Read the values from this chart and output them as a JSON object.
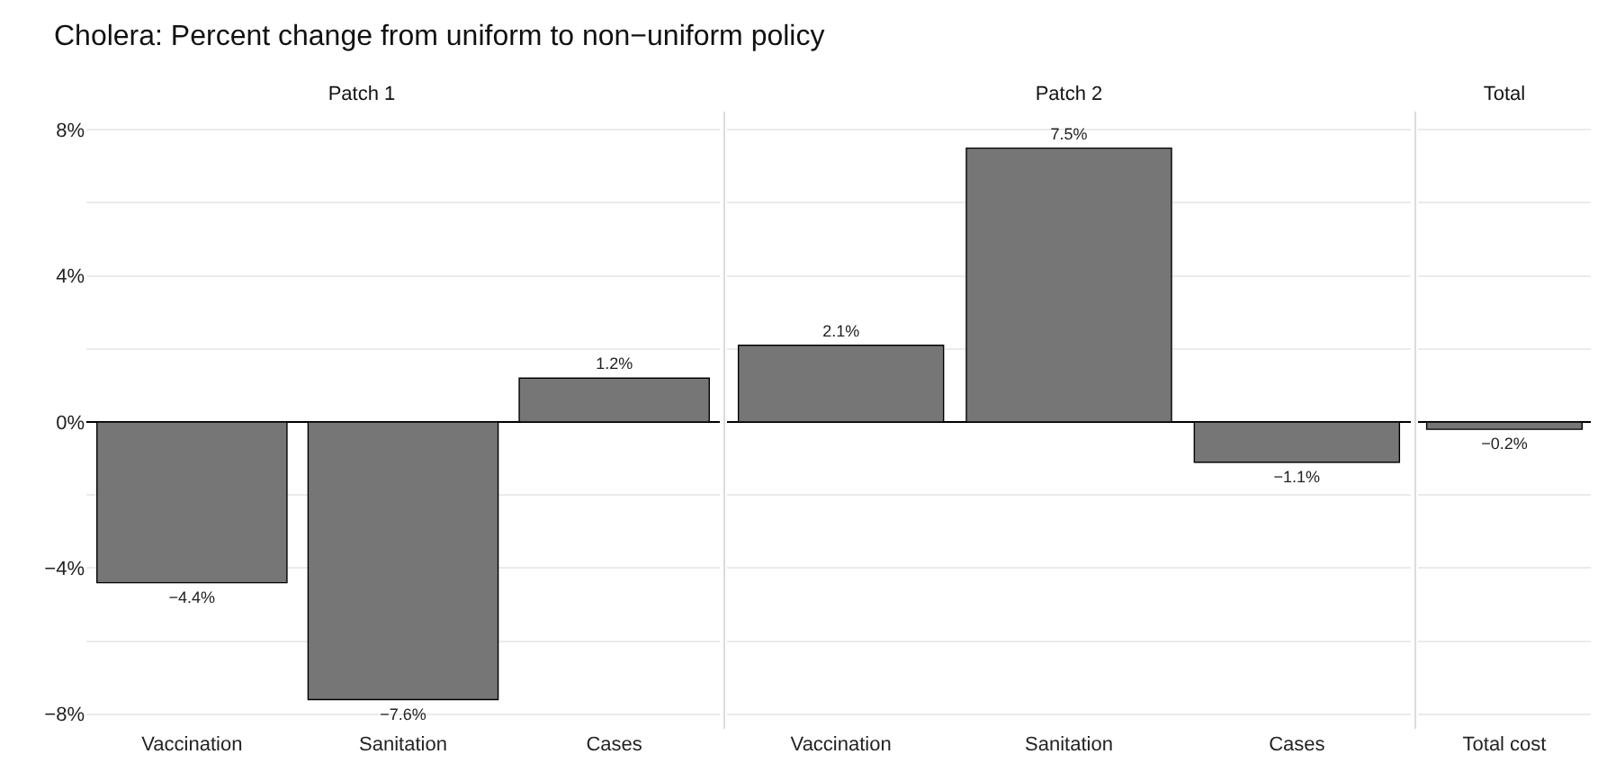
{
  "chart_data": [
    {
      "type": "bar",
      "title": "Cholera: Percent change from uniform to non−uniform policy",
      "subtitle": "Patch 1",
      "categories": [
        "Vaccination",
        "Sanitation",
        "Cases"
      ],
      "values": [
        -4.4,
        -7.6,
        1.2
      ],
      "value_labels": [
        "−4.4%",
        "−7.6%",
        "1.2%"
      ],
      "color": "#767676",
      "ylim": [
        -8.4,
        8.5
      ],
      "yticks": [
        {
          "value": -8,
          "label": "−8%"
        },
        {
          "value": -6,
          "label": null
        },
        {
          "value": -4,
          "label": "−4%"
        },
        {
          "value": -2,
          "label": null
        },
        {
          "value": 0,
          "label": "0%"
        },
        {
          "value": 2,
          "label": null
        },
        {
          "value": 4,
          "label": "4%"
        },
        {
          "value": 6,
          "label": null
        },
        {
          "value": 8,
          "label": "8%"
        }
      ],
      "grid": "y"
    },
    {
      "type": "bar",
      "subtitle": "Patch 2",
      "categories": [
        "Vaccination",
        "Sanitation",
        "Cases"
      ],
      "values": [
        2.1,
        7.5,
        -1.1
      ],
      "value_labels": [
        "2.1%",
        "7.5%",
        "−1.1%"
      ],
      "color": "#767676",
      "ylim": [
        -8.4,
        8.5
      ],
      "yticks": [
        {
          "value": -8,
          "label": null
        },
        {
          "value": -6,
          "label": null
        },
        {
          "value": -4,
          "label": null
        },
        {
          "value": -2,
          "label": null
        },
        {
          "value": 0,
          "label": null
        },
        {
          "value": 2,
          "label": null
        },
        {
          "value": 4,
          "label": null
        },
        {
          "value": 6,
          "label": null
        },
        {
          "value": 8,
          "label": null
        }
      ],
      "grid": "y",
      "tick_labels": "x"
    },
    {
      "type": "bar",
      "subtitle": "Total",
      "categories": [
        "Total cost"
      ],
      "values": [
        -0.2
      ],
      "value_labels": [
        "−0.2%"
      ],
      "color": "#767676",
      "ylim": [
        -8.4,
        8.5
      ],
      "yticks": [
        {
          "value": -8,
          "label": null
        },
        {
          "value": -6,
          "label": null
        },
        {
          "value": -4,
          "label": null
        },
        {
          "value": -2,
          "label": null
        },
        {
          "value": 0,
          "label": null
        },
        {
          "value": 2,
          "label": null
        },
        {
          "value": 4,
          "label": null
        },
        {
          "value": 6,
          "label": null
        },
        {
          "value": 8,
          "label": null
        }
      ],
      "grid": "y",
      "tick_labels": "x"
    }
  ]
}
